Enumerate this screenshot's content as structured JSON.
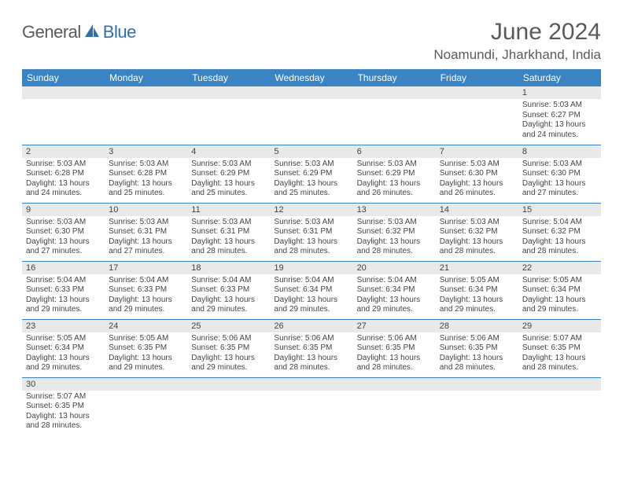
{
  "brand": {
    "part1": "General",
    "part2": "Blue"
  },
  "title": "June 2024",
  "location": "Noamundi, Jharkhand, India",
  "colors": {
    "header_bg": "#3b84c4",
    "header_fg": "#ffffff",
    "daynum_bg": "#e9e9e9",
    "border": "#3b84c4",
    "text": "#444444",
    "title_text": "#5a5a5a",
    "logo_blue": "#2f6fb0"
  },
  "columns": [
    "Sunday",
    "Monday",
    "Tuesday",
    "Wednesday",
    "Thursday",
    "Friday",
    "Saturday"
  ],
  "weeks": [
    [
      null,
      null,
      null,
      null,
      null,
      null,
      {
        "n": "1",
        "sr": "5:03 AM",
        "ss": "6:27 PM",
        "dl": "13 hours and 24 minutes."
      }
    ],
    [
      {
        "n": "2",
        "sr": "5:03 AM",
        "ss": "6:28 PM",
        "dl": "13 hours and 24 minutes."
      },
      {
        "n": "3",
        "sr": "5:03 AM",
        "ss": "6:28 PM",
        "dl": "13 hours and 25 minutes."
      },
      {
        "n": "4",
        "sr": "5:03 AM",
        "ss": "6:29 PM",
        "dl": "13 hours and 25 minutes."
      },
      {
        "n": "5",
        "sr": "5:03 AM",
        "ss": "6:29 PM",
        "dl": "13 hours and 25 minutes."
      },
      {
        "n": "6",
        "sr": "5:03 AM",
        "ss": "6:29 PM",
        "dl": "13 hours and 26 minutes."
      },
      {
        "n": "7",
        "sr": "5:03 AM",
        "ss": "6:30 PM",
        "dl": "13 hours and 26 minutes."
      },
      {
        "n": "8",
        "sr": "5:03 AM",
        "ss": "6:30 PM",
        "dl": "13 hours and 27 minutes."
      }
    ],
    [
      {
        "n": "9",
        "sr": "5:03 AM",
        "ss": "6:30 PM",
        "dl": "13 hours and 27 minutes."
      },
      {
        "n": "10",
        "sr": "5:03 AM",
        "ss": "6:31 PM",
        "dl": "13 hours and 27 minutes."
      },
      {
        "n": "11",
        "sr": "5:03 AM",
        "ss": "6:31 PM",
        "dl": "13 hours and 28 minutes."
      },
      {
        "n": "12",
        "sr": "5:03 AM",
        "ss": "6:31 PM",
        "dl": "13 hours and 28 minutes."
      },
      {
        "n": "13",
        "sr": "5:03 AM",
        "ss": "6:32 PM",
        "dl": "13 hours and 28 minutes."
      },
      {
        "n": "14",
        "sr": "5:03 AM",
        "ss": "6:32 PM",
        "dl": "13 hours and 28 minutes."
      },
      {
        "n": "15",
        "sr": "5:04 AM",
        "ss": "6:32 PM",
        "dl": "13 hours and 28 minutes."
      }
    ],
    [
      {
        "n": "16",
        "sr": "5:04 AM",
        "ss": "6:33 PM",
        "dl": "13 hours and 29 minutes."
      },
      {
        "n": "17",
        "sr": "5:04 AM",
        "ss": "6:33 PM",
        "dl": "13 hours and 29 minutes."
      },
      {
        "n": "18",
        "sr": "5:04 AM",
        "ss": "6:33 PM",
        "dl": "13 hours and 29 minutes."
      },
      {
        "n": "19",
        "sr": "5:04 AM",
        "ss": "6:34 PM",
        "dl": "13 hours and 29 minutes."
      },
      {
        "n": "20",
        "sr": "5:04 AM",
        "ss": "6:34 PM",
        "dl": "13 hours and 29 minutes."
      },
      {
        "n": "21",
        "sr": "5:05 AM",
        "ss": "6:34 PM",
        "dl": "13 hours and 29 minutes."
      },
      {
        "n": "22",
        "sr": "5:05 AM",
        "ss": "6:34 PM",
        "dl": "13 hours and 29 minutes."
      }
    ],
    [
      {
        "n": "23",
        "sr": "5:05 AM",
        "ss": "6:34 PM",
        "dl": "13 hours and 29 minutes."
      },
      {
        "n": "24",
        "sr": "5:05 AM",
        "ss": "6:35 PM",
        "dl": "13 hours and 29 minutes."
      },
      {
        "n": "25",
        "sr": "5:06 AM",
        "ss": "6:35 PM",
        "dl": "13 hours and 29 minutes."
      },
      {
        "n": "26",
        "sr": "5:06 AM",
        "ss": "6:35 PM",
        "dl": "13 hours and 28 minutes."
      },
      {
        "n": "27",
        "sr": "5:06 AM",
        "ss": "6:35 PM",
        "dl": "13 hours and 28 minutes."
      },
      {
        "n": "28",
        "sr": "5:06 AM",
        "ss": "6:35 PM",
        "dl": "13 hours and 28 minutes."
      },
      {
        "n": "29",
        "sr": "5:07 AM",
        "ss": "6:35 PM",
        "dl": "13 hours and 28 minutes."
      }
    ],
    [
      {
        "n": "30",
        "sr": "5:07 AM",
        "ss": "6:35 PM",
        "dl": "13 hours and 28 minutes."
      },
      null,
      null,
      null,
      null,
      null,
      null
    ]
  ],
  "labels": {
    "sunrise": "Sunrise:",
    "sunset": "Sunset:",
    "daylight": "Daylight:"
  }
}
